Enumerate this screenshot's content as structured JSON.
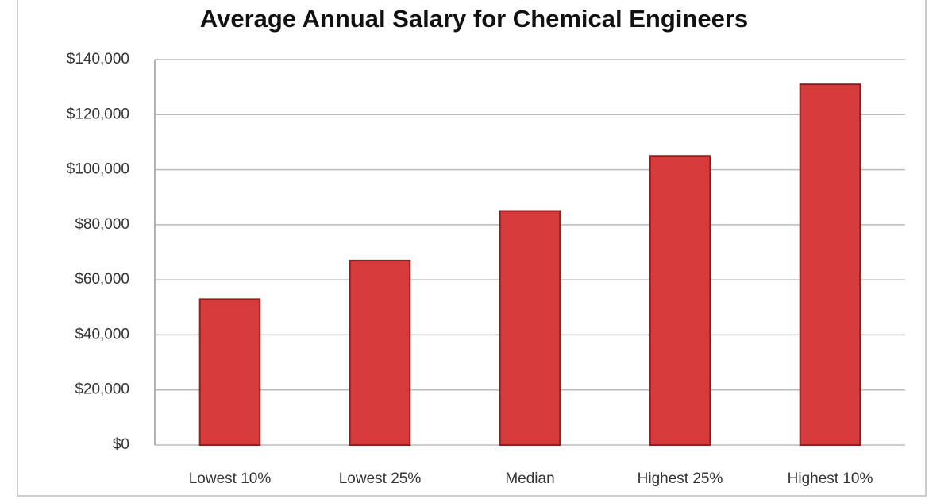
{
  "chart_data": {
    "type": "bar",
    "title": "Average Annual Salary for Chemical Engineers",
    "categories": [
      "Lowest 10%",
      "Lowest 25%",
      "Median",
      "Highest 25%",
      "Highest 10%"
    ],
    "values": [
      53000,
      67000,
      85000,
      105000,
      131000
    ],
    "color": "#d63a3a",
    "ylim": [
      0,
      140000
    ],
    "yticks": [
      {
        "value": 0,
        "label": "$0"
      },
      {
        "value": 20000,
        "label": "$20,000"
      },
      {
        "value": 40000,
        "label": "$40,000"
      },
      {
        "value": 60000,
        "label": "$60,000"
      },
      {
        "value": 80000,
        "label": "$80,000"
      },
      {
        "value": 100000,
        "label": "$100,000"
      },
      {
        "value": 120000,
        "label": "$120,000"
      },
      {
        "value": 140000,
        "label": "$140,000"
      }
    ],
    "grid": true
  }
}
